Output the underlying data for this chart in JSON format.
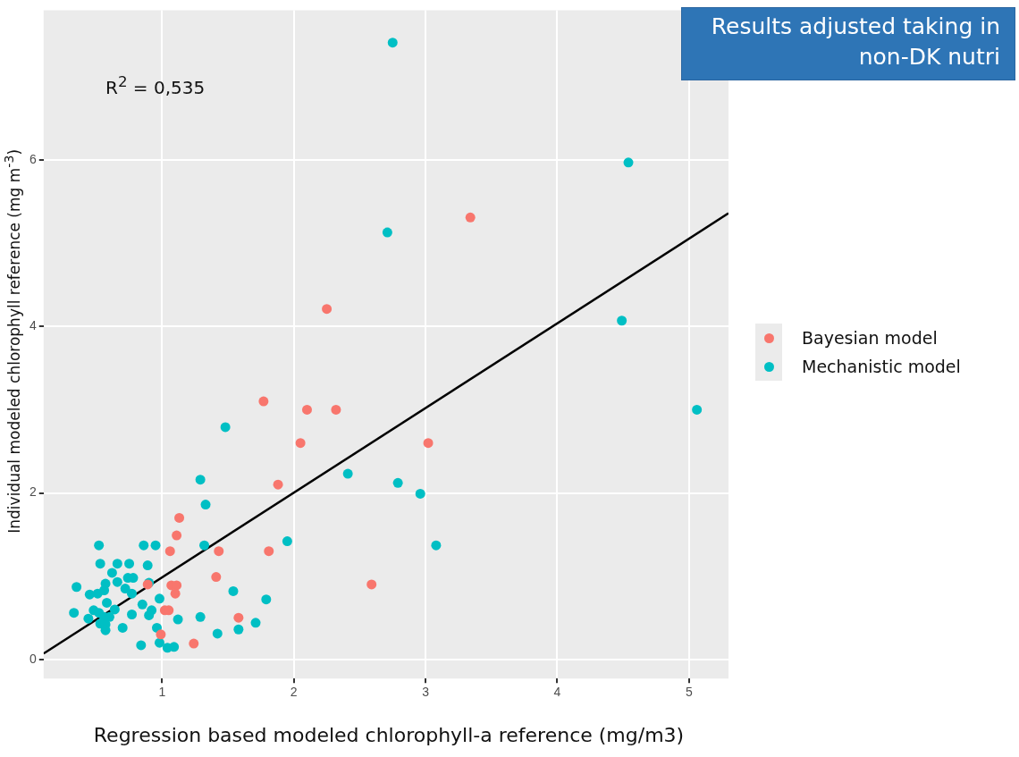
{
  "chart_data": {
    "type": "scatter",
    "xlabel": "Regression based modeled chlorophyll-a reference (mg/m3)",
    "ylabel": "Individual modeled chlorophyll reference (mg m$^{-3}$)",
    "annotations": [
      "R$^{2}$ = 0,535",
      "Results adjusted taking in non-DK nutri"
    ],
    "xlim": [
      0.1,
      5.3
    ],
    "ylim": [
      -0.23,
      7.8
    ],
    "xticks": [
      1,
      2,
      3,
      4,
      5
    ],
    "yticks": [
      0,
      2,
      4,
      6
    ],
    "grid": true,
    "legend": "right",
    "series": [
      {
        "name": "Bayesian model",
        "color": "#f8766d",
        "marker": "circle",
        "x": [
          1.77,
          2.1,
          2.32,
          2.25,
          3.34,
          2.05,
          3.02,
          1.88,
          1.13,
          1.11,
          1.06,
          1.43,
          1.81,
          1.41,
          1.07,
          1.11,
          1.1,
          2.59,
          1.02,
          1.05,
          1.58,
          0.99,
          1.24,
          0.89
        ],
        "values": [
          3.1,
          3.0,
          3.0,
          4.21,
          5.31,
          2.6,
          2.6,
          2.1,
          1.7,
          1.49,
          1.3,
          1.3,
          1.3,
          0.99,
          0.89,
          0.89,
          0.79,
          0.9,
          0.59,
          0.59,
          0.5,
          0.3,
          0.19,
          0.9
        ]
      },
      {
        "name": "Mechanistic model",
        "color": "#00bfc4",
        "marker": "circle",
        "x": [
          2.75,
          4.54,
          2.71,
          4.49,
          5.06,
          1.48,
          2.41,
          2.79,
          2.96,
          1.29,
          1.33,
          3.08,
          1.95,
          1.32,
          1.54,
          1.79,
          1.71,
          1.58,
          1.42,
          1.29,
          1.12,
          0.52,
          0.86,
          0.95,
          0.53,
          0.66,
          0.75,
          0.89,
          0.62,
          0.66,
          0.74,
          0.78,
          0.57,
          0.9,
          0.35,
          0.45,
          0.51,
          0.56,
          0.72,
          0.77,
          0.98,
          0.58,
          0.85,
          0.92,
          0.64,
          0.33,
          0.48,
          0.52,
          0.77,
          0.9,
          0.44,
          0.56,
          0.6,
          0.53,
          0.57,
          0.7,
          0.57,
          0.96,
          0.98,
          0.84,
          1.04,
          1.09
        ],
        "values": [
          7.41,
          5.97,
          5.13,
          4.07,
          3.0,
          2.79,
          2.23,
          2.12,
          1.99,
          2.16,
          1.86,
          1.37,
          1.42,
          1.37,
          0.82,
          0.72,
          0.44,
          0.36,
          0.31,
          0.51,
          0.48,
          1.37,
          1.37,
          1.37,
          1.15,
          1.15,
          1.15,
          1.13,
          1.04,
          0.93,
          0.98,
          0.98,
          0.91,
          0.92,
          0.87,
          0.78,
          0.79,
          0.83,
          0.85,
          0.79,
          0.73,
          0.68,
          0.66,
          0.59,
          0.6,
          0.56,
          0.59,
          0.56,
          0.54,
          0.53,
          0.49,
          0.51,
          0.51,
          0.43,
          0.42,
          0.38,
          0.35,
          0.38,
          0.2,
          0.17,
          0.14,
          0.15
        ]
      },
      {
        "type": "line",
        "color": "#000000",
        "marker": "none",
        "x": [
          0.1,
          5.3
        ],
        "values": [
          0.07,
          5.36
        ]
      }
    ]
  }
}
